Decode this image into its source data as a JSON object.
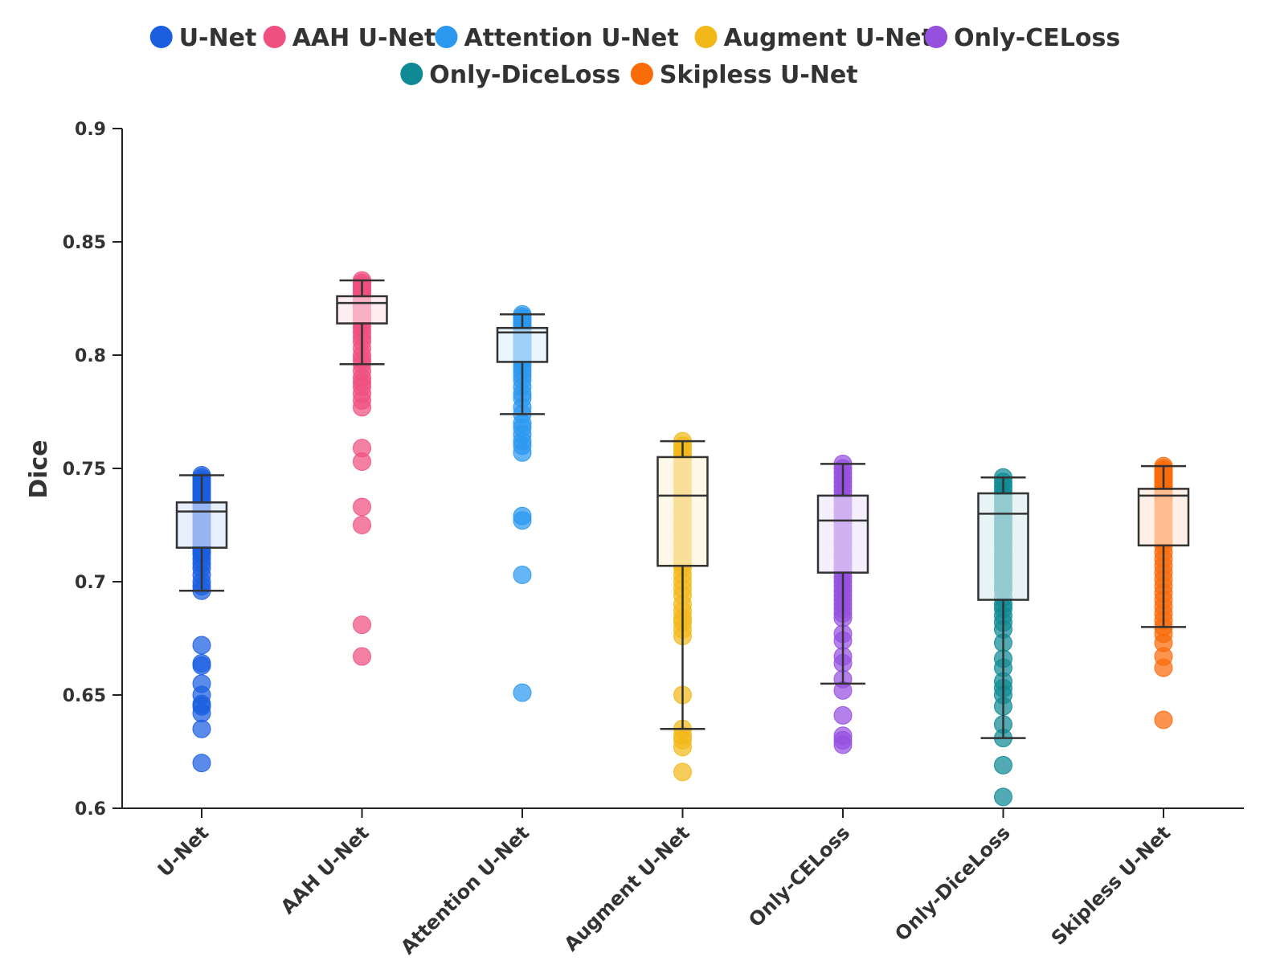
{
  "chart_data": {
    "type": "box",
    "title": "",
    "xlabel": "",
    "ylabel": "Dice",
    "ylim": [
      0.6,
      0.9
    ],
    "yticks": [
      "0.6",
      "0.65",
      "0.7",
      "0.75",
      "0.8",
      "0.85",
      "0.9"
    ],
    "grid": false,
    "legend_position": "top-center",
    "categories": [
      "U-Net",
      "AAH U-Net",
      "Attention U-Net",
      "Augment U-Net",
      "Only-CELoss",
      "Only-DiceLoss",
      "Skipless U-Net"
    ],
    "series": [
      {
        "name": "U-Net",
        "color": "#1b5ee0",
        "box": {
          "whisker_low": 0.696,
          "q1": 0.715,
          "median": 0.731,
          "q3": 0.735,
          "whisker_high": 0.747
        },
        "points": [
          0.747,
          0.746,
          0.745,
          0.744,
          0.743,
          0.742,
          0.741,
          0.74,
          0.739,
          0.738,
          0.737,
          0.736,
          0.735,
          0.734,
          0.733,
          0.732,
          0.731,
          0.73,
          0.729,
          0.728,
          0.727,
          0.726,
          0.725,
          0.724,
          0.723,
          0.722,
          0.721,
          0.72,
          0.719,
          0.718,
          0.717,
          0.716,
          0.715,
          0.714,
          0.713,
          0.712,
          0.71,
          0.708,
          0.706,
          0.703,
          0.7,
          0.698,
          0.696,
          0.672,
          0.664,
          0.663,
          0.655,
          0.65,
          0.646,
          0.645,
          0.642,
          0.635,
          0.62
        ]
      },
      {
        "name": "AAH U-Net",
        "color": "#f0507f",
        "box": {
          "whisker_low": 0.796,
          "q1": 0.814,
          "median": 0.823,
          "q3": 0.826,
          "whisker_high": 0.833
        },
        "points": [
          0.833,
          0.832,
          0.831,
          0.83,
          0.829,
          0.828,
          0.827,
          0.826,
          0.825,
          0.824,
          0.823,
          0.822,
          0.821,
          0.82,
          0.819,
          0.818,
          0.817,
          0.816,
          0.815,
          0.814,
          0.812,
          0.81,
          0.808,
          0.806,
          0.803,
          0.8,
          0.798,
          0.796,
          0.793,
          0.79,
          0.788,
          0.786,
          0.783,
          0.78,
          0.777,
          0.759,
          0.753,
          0.733,
          0.725,
          0.681,
          0.667
        ]
      },
      {
        "name": "Attention U-Net",
        "color": "#2b98f0",
        "box": {
          "whisker_low": 0.774,
          "q1": 0.797,
          "median": 0.81,
          "q3": 0.812,
          "whisker_high": 0.818
        },
        "points": [
          0.818,
          0.817,
          0.816,
          0.815,
          0.814,
          0.813,
          0.812,
          0.811,
          0.81,
          0.809,
          0.808,
          0.807,
          0.806,
          0.805,
          0.804,
          0.803,
          0.802,
          0.801,
          0.8,
          0.799,
          0.798,
          0.797,
          0.795,
          0.793,
          0.791,
          0.789,
          0.786,
          0.783,
          0.781,
          0.777,
          0.774,
          0.77,
          0.768,
          0.765,
          0.762,
          0.76,
          0.757,
          0.729,
          0.727,
          0.703,
          0.651
        ]
      },
      {
        "name": "Augment U-Net",
        "color": "#f2b81a",
        "box": {
          "whisker_low": 0.635,
          "q1": 0.707,
          "median": 0.738,
          "q3": 0.755,
          "whisker_high": 0.762
        },
        "points": [
          0.762,
          0.76,
          0.758,
          0.756,
          0.754,
          0.752,
          0.75,
          0.748,
          0.746,
          0.744,
          0.742,
          0.74,
          0.738,
          0.736,
          0.734,
          0.732,
          0.73,
          0.728,
          0.726,
          0.724,
          0.722,
          0.72,
          0.718,
          0.716,
          0.714,
          0.712,
          0.71,
          0.708,
          0.706,
          0.703,
          0.7,
          0.697,
          0.694,
          0.69,
          0.687,
          0.684,
          0.682,
          0.679,
          0.676,
          0.65,
          0.635,
          0.632,
          0.63,
          0.627,
          0.616
        ]
      },
      {
        "name": "Only-CELoss",
        "color": "#9650e0",
        "box": {
          "whisker_low": 0.655,
          "q1": 0.704,
          "median": 0.727,
          "q3": 0.738,
          "whisker_high": 0.752
        },
        "points": [
          0.752,
          0.75,
          0.748,
          0.746,
          0.744,
          0.742,
          0.74,
          0.738,
          0.736,
          0.734,
          0.732,
          0.73,
          0.728,
          0.726,
          0.724,
          0.722,
          0.72,
          0.718,
          0.716,
          0.714,
          0.712,
          0.71,
          0.708,
          0.706,
          0.704,
          0.702,
          0.7,
          0.698,
          0.696,
          0.694,
          0.692,
          0.69,
          0.688,
          0.686,
          0.684,
          0.677,
          0.674,
          0.667,
          0.664,
          0.657,
          0.652,
          0.641,
          0.632,
          0.63,
          0.628
        ]
      },
      {
        "name": "Only-DiceLoss",
        "color": "#0f8a94",
        "box": {
          "whisker_low": 0.631,
          "q1": 0.692,
          "median": 0.73,
          "q3": 0.739,
          "whisker_high": 0.746
        },
        "points": [
          0.746,
          0.744,
          0.742,
          0.74,
          0.738,
          0.736,
          0.734,
          0.732,
          0.73,
          0.728,
          0.726,
          0.724,
          0.722,
          0.72,
          0.718,
          0.716,
          0.714,
          0.712,
          0.71,
          0.708,
          0.706,
          0.704,
          0.702,
          0.7,
          0.698,
          0.696,
          0.693,
          0.69,
          0.688,
          0.685,
          0.682,
          0.679,
          0.673,
          0.666,
          0.662,
          0.656,
          0.653,
          0.65,
          0.645,
          0.637,
          0.631,
          0.619,
          0.605
        ]
      },
      {
        "name": "Skipless U-Net",
        "color": "#fa6b0a",
        "box": {
          "whisker_low": 0.68,
          "q1": 0.716,
          "median": 0.738,
          "q3": 0.741,
          "whisker_high": 0.751
        },
        "points": [
          0.751,
          0.75,
          0.749,
          0.748,
          0.747,
          0.746,
          0.745,
          0.744,
          0.743,
          0.742,
          0.741,
          0.74,
          0.739,
          0.738,
          0.737,
          0.736,
          0.734,
          0.732,
          0.73,
          0.728,
          0.726,
          0.724,
          0.722,
          0.72,
          0.718,
          0.716,
          0.713,
          0.71,
          0.707,
          0.704,
          0.701,
          0.698,
          0.695,
          0.692,
          0.689,
          0.686,
          0.683,
          0.68,
          0.677,
          0.673,
          0.667,
          0.662,
          0.639
        ]
      }
    ]
  }
}
